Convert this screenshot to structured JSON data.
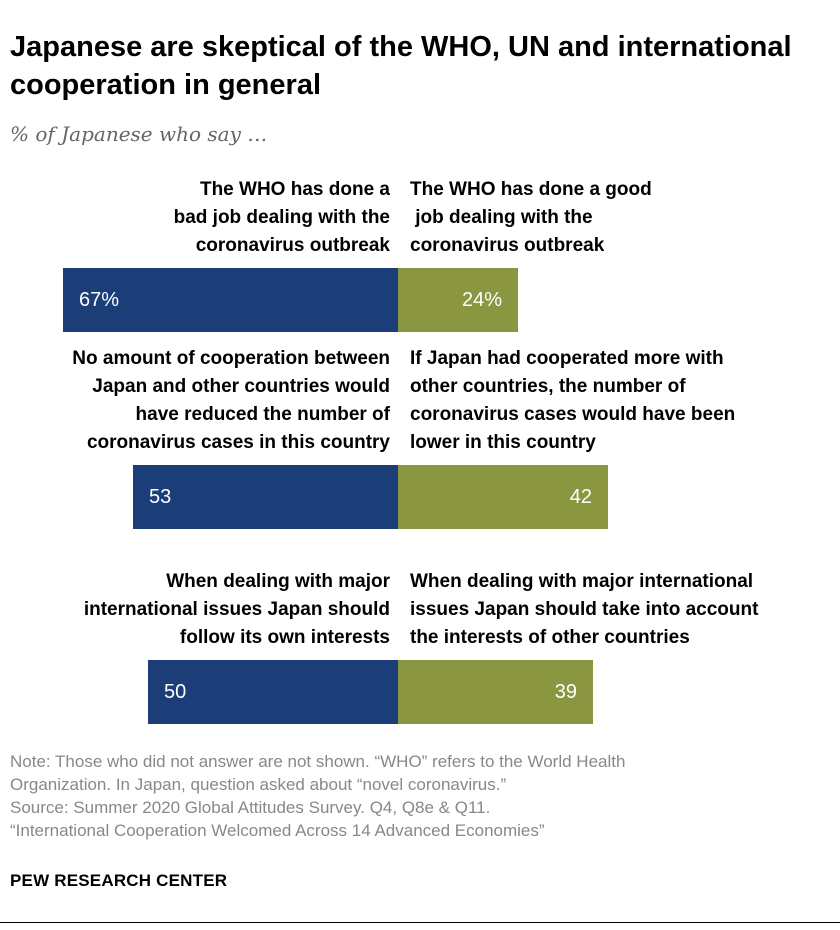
{
  "title": "Japanese are skeptical of the WHO, UN and international cooperation in general",
  "subtitle": "% of Japanese who say …",
  "colors": {
    "left": "#1b3e79",
    "right": "#8a9640",
    "bar_text": "#ffffff"
  },
  "chart_data": {
    "type": "bar",
    "orientation": "horizontal-diverging",
    "series": [
      {
        "name": "left",
        "values": [
          67,
          53,
          50
        ]
      },
      {
        "name": "right",
        "values": [
          24,
          42,
          39
        ]
      }
    ],
    "rows": [
      {
        "left_label": [
          "The WHO has done a",
          "bad job dealing with the",
          "coronavirus outbreak"
        ],
        "right_label": [
          "The WHO has done a good",
          " job dealing with the",
          "coronavirus outbreak"
        ],
        "left_value": 67,
        "right_value": 24,
        "left_text": "67%",
        "right_text": "24%"
      },
      {
        "left_label": [
          "No amount of cooperation between",
          "Japan and other countries would",
          "have reduced the number of",
          "coronavirus cases in this country"
        ],
        "right_label": [
          "If Japan had cooperated more with",
          "other countries, the number of",
          "coronavirus cases would have been",
          "lower in this country"
        ],
        "left_value": 53,
        "right_value": 42,
        "left_text": "53",
        "right_text": "42"
      },
      {
        "left_label": [
          "When dealing with major",
          "international issues Japan should",
          "follow its own interests"
        ],
        "right_label": [
          "When dealing with major international",
          "issues Japan should take into account",
          "the interests of other countries"
        ],
        "left_value": 50,
        "right_value": 39,
        "left_text": "50",
        "right_text": "39"
      }
    ]
  },
  "notes": [
    "Note: Those who did not answer are not shown. “WHO” refers to the World Health",
    "Organization. In Japan, question asked about “novel coronavirus.”",
    "Source: Summer 2020 Global Attitudes Survey. Q4, Q8e & Q11.",
    "“International Cooperation Welcomed Across 14 Advanced Economies”"
  ],
  "footer": "PEW RESEARCH CENTER"
}
